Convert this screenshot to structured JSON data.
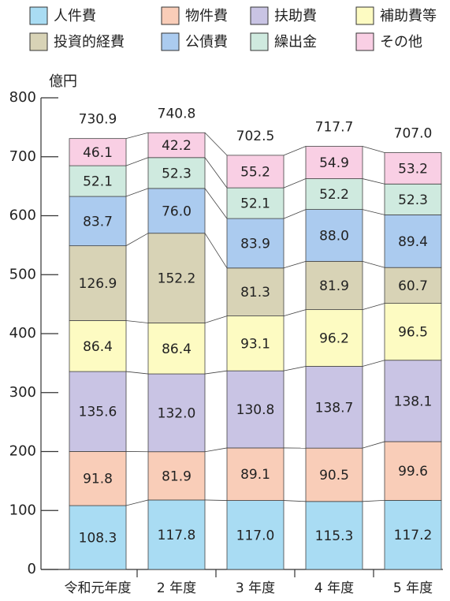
{
  "chart_data": {
    "type": "stacked_bar",
    "y_label": "億円",
    "categories": [
      "令和元年度",
      "2 年度",
      "3 年度",
      "4 年度",
      "5 年度"
    ],
    "ylim": [
      0,
      800
    ],
    "yticks": [
      0,
      100,
      200,
      300,
      400,
      500,
      600,
      700,
      800
    ],
    "series": [
      {
        "name": "人件費",
        "color": "#a9dcf3",
        "values": [
          108.3,
          117.8,
          117.0,
          115.3,
          117.2
        ],
        "value_labels": [
          "108.3",
          "117.8",
          "117.0",
          "115.3",
          "117.2"
        ]
      },
      {
        "name": "物件費",
        "color": "#f9cdb8",
        "values": [
          91.8,
          81.9,
          89.1,
          90.5,
          99.6
        ],
        "value_labels": [
          "91.8",
          "81.9",
          "89.1",
          "90.5",
          "99.6"
        ]
      },
      {
        "name": "扶助費",
        "color": "#c9c4e4",
        "values": [
          135.6,
          132.0,
          130.8,
          138.7,
          138.1
        ],
        "value_labels": [
          "135.6",
          "132.0",
          "130.8",
          "138.7",
          "138.1"
        ]
      },
      {
        "name": "補助費等",
        "color": "#fdfbc2",
        "values": [
          86.4,
          86.4,
          93.1,
          96.2,
          96.5
        ],
        "value_labels": [
          "86.4",
          "86.4",
          "93.1",
          "96.2",
          "96.5"
        ]
      },
      {
        "name": "投資的経費",
        "color": "#d8d3b6",
        "values": [
          126.9,
          152.2,
          81.3,
          81.9,
          60.7
        ],
        "value_labels": [
          "126.9",
          "152.2",
          "81.3",
          "81.9",
          "60.7"
        ]
      },
      {
        "name": "公債費",
        "color": "#abcbef",
        "values": [
          83.7,
          76.0,
          83.9,
          88.0,
          89.4
        ],
        "value_labels": [
          "83.7",
          "76.0",
          "83.9",
          "88.0",
          "89.4"
        ]
      },
      {
        "name": "繰出金",
        "color": "#cfeadf",
        "values": [
          52.1,
          52.3,
          52.1,
          52.2,
          52.3
        ],
        "value_labels": [
          "52.1",
          "52.3",
          "52.1",
          "52.2",
          "52.3"
        ]
      },
      {
        "name": "その他",
        "color": "#f9cfe4",
        "values": [
          46.1,
          42.2,
          55.2,
          54.9,
          53.2
        ],
        "value_labels": [
          "46.1",
          "42.2",
          "55.2",
          "54.9",
          "53.2"
        ]
      }
    ],
    "totals": {
      "values": [
        730.9,
        740.8,
        702.5,
        717.7,
        707.0
      ],
      "value_labels": [
        "730.9",
        "740.8",
        "702.5",
        "717.7",
        "707.0"
      ]
    }
  }
}
